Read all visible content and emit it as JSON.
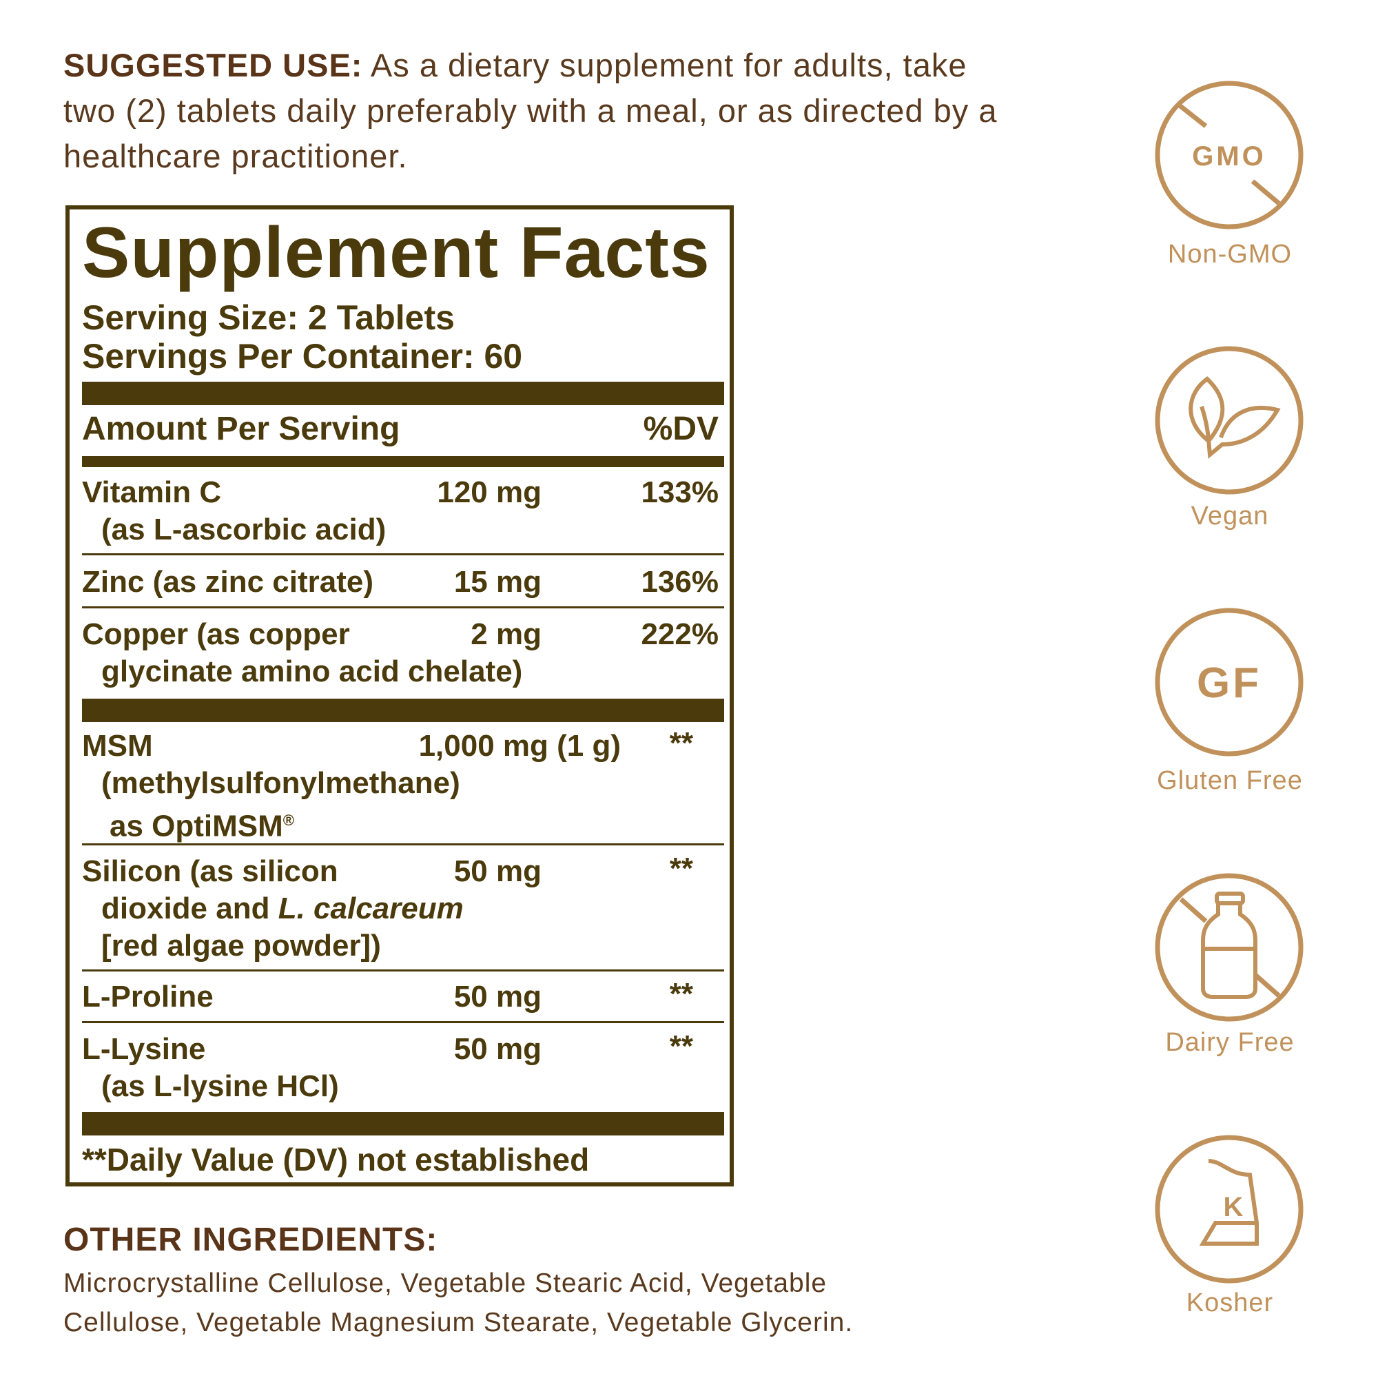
{
  "suggested_use": {
    "label": "SUGGESTED USE:",
    "text": " As a dietary supplement for adults, take two (2) tablets daily preferably with a meal, or as directed by a healthcare practitioner."
  },
  "facts": {
    "title": "Supplement Facts",
    "serving_size": "Serving Size: 2 Tablets",
    "servings_per_container": "Servings Per Container: 60",
    "header_amount": "Amount Per Serving",
    "header_dv": "%DV",
    "rows": [
      {
        "name": "Vitamin C",
        "sub": "(as L-ascorbic acid)",
        "amount": "120 mg",
        "dv": "133%"
      },
      {
        "name": "Zinc (as zinc citrate)",
        "amount": "15 mg",
        "dv": "136%"
      },
      {
        "name": "Copper (as copper",
        "sub": "glycinate amino acid chelate)",
        "amount": "2 mg",
        "dv": "222%"
      },
      {
        "name": "MSM",
        "sub": "(methylsulfonylmethane)",
        "sub2": "as OptiMSM",
        "sub2_mark": "®",
        "amount": "1,000 mg (1 g)",
        "dv": "**"
      },
      {
        "name": "Silicon (as silicon",
        "sub": "dioxide and ",
        "sub_italic": "L. calcareum",
        "sub2": "[red algae powder])",
        "amount": "50 mg",
        "dv": "**"
      },
      {
        "name": "L-Proline",
        "amount": "50 mg",
        "dv": "**"
      },
      {
        "name": "L-Lysine",
        "sub": "(as L-lysine HCl)",
        "amount": "50 mg",
        "dv": "**"
      }
    ],
    "footnote": "**Daily Value (DV) not established"
  },
  "other_ingredients": {
    "label": "OTHER INGREDIENTS:",
    "text": "Microcrystalline Cellulose, Vegetable Stearic Acid, Vegetable Cellulose, Vegetable Magnesium Stearate, Vegetable Glycerin."
  },
  "badges": [
    {
      "icon": "non-gmo-icon",
      "icon_text": "GMO",
      "label": "Non-GMO"
    },
    {
      "icon": "vegan-leaf-icon",
      "label": "Vegan"
    },
    {
      "icon": "gluten-free-icon",
      "icon_text": "GF",
      "label": "Gluten Free"
    },
    {
      "icon": "dairy-free-icon",
      "label": "Dairy Free"
    },
    {
      "icon": "kosher-icon",
      "icon_text": "K",
      "label": "Kosher"
    }
  ],
  "colors": {
    "label_brown": "#4a3a0c",
    "heading_brown": "#5a3418",
    "badge_gold": "#c0915a"
  }
}
